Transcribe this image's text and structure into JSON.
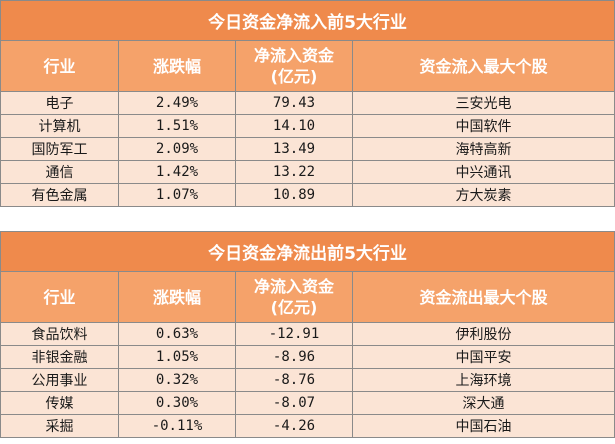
{
  "inflow": {
    "title": "今日资金净流入前5大行业",
    "headers": [
      "行业",
      "涨跌幅",
      "净流入资金\n(亿元)",
      "资金流入最大个股"
    ],
    "rows": [
      {
        "industry": "电子",
        "change": "2.49%",
        "net": "79.43",
        "stock": "三安光电"
      },
      {
        "industry": "计算机",
        "change": "1.51%",
        "net": "14.10",
        "stock": "中国软件"
      },
      {
        "industry": "国防军工",
        "change": "2.09%",
        "net": "13.49",
        "stock": "海特高新"
      },
      {
        "industry": "通信",
        "change": "1.42%",
        "net": "13.22",
        "stock": "中兴通讯"
      },
      {
        "industry": "有色金属",
        "change": "1.07%",
        "net": "10.89",
        "stock": "方大炭素"
      }
    ]
  },
  "outflow": {
    "title": "今日资金净流出前5大行业",
    "headers": [
      "行业",
      "涨跌幅",
      "净流入资金\n(亿元)",
      "资金流出最大个股"
    ],
    "rows": [
      {
        "industry": "食品饮料",
        "change": "0.63%",
        "net": "-12.91",
        "stock": "伊利股份"
      },
      {
        "industry": "非银金融",
        "change": "1.05%",
        "net": "-8.96",
        "stock": "中国平安"
      },
      {
        "industry": "公用事业",
        "change": "0.32%",
        "net": "-8.76",
        "stock": "上海环境"
      },
      {
        "industry": "传媒",
        "change": "0.30%",
        "net": "-8.07",
        "stock": "深大通"
      },
      {
        "industry": "采掘",
        "change": "-0.11%",
        "net": "-4.26",
        "stock": "中国石油"
      }
    ]
  }
}
